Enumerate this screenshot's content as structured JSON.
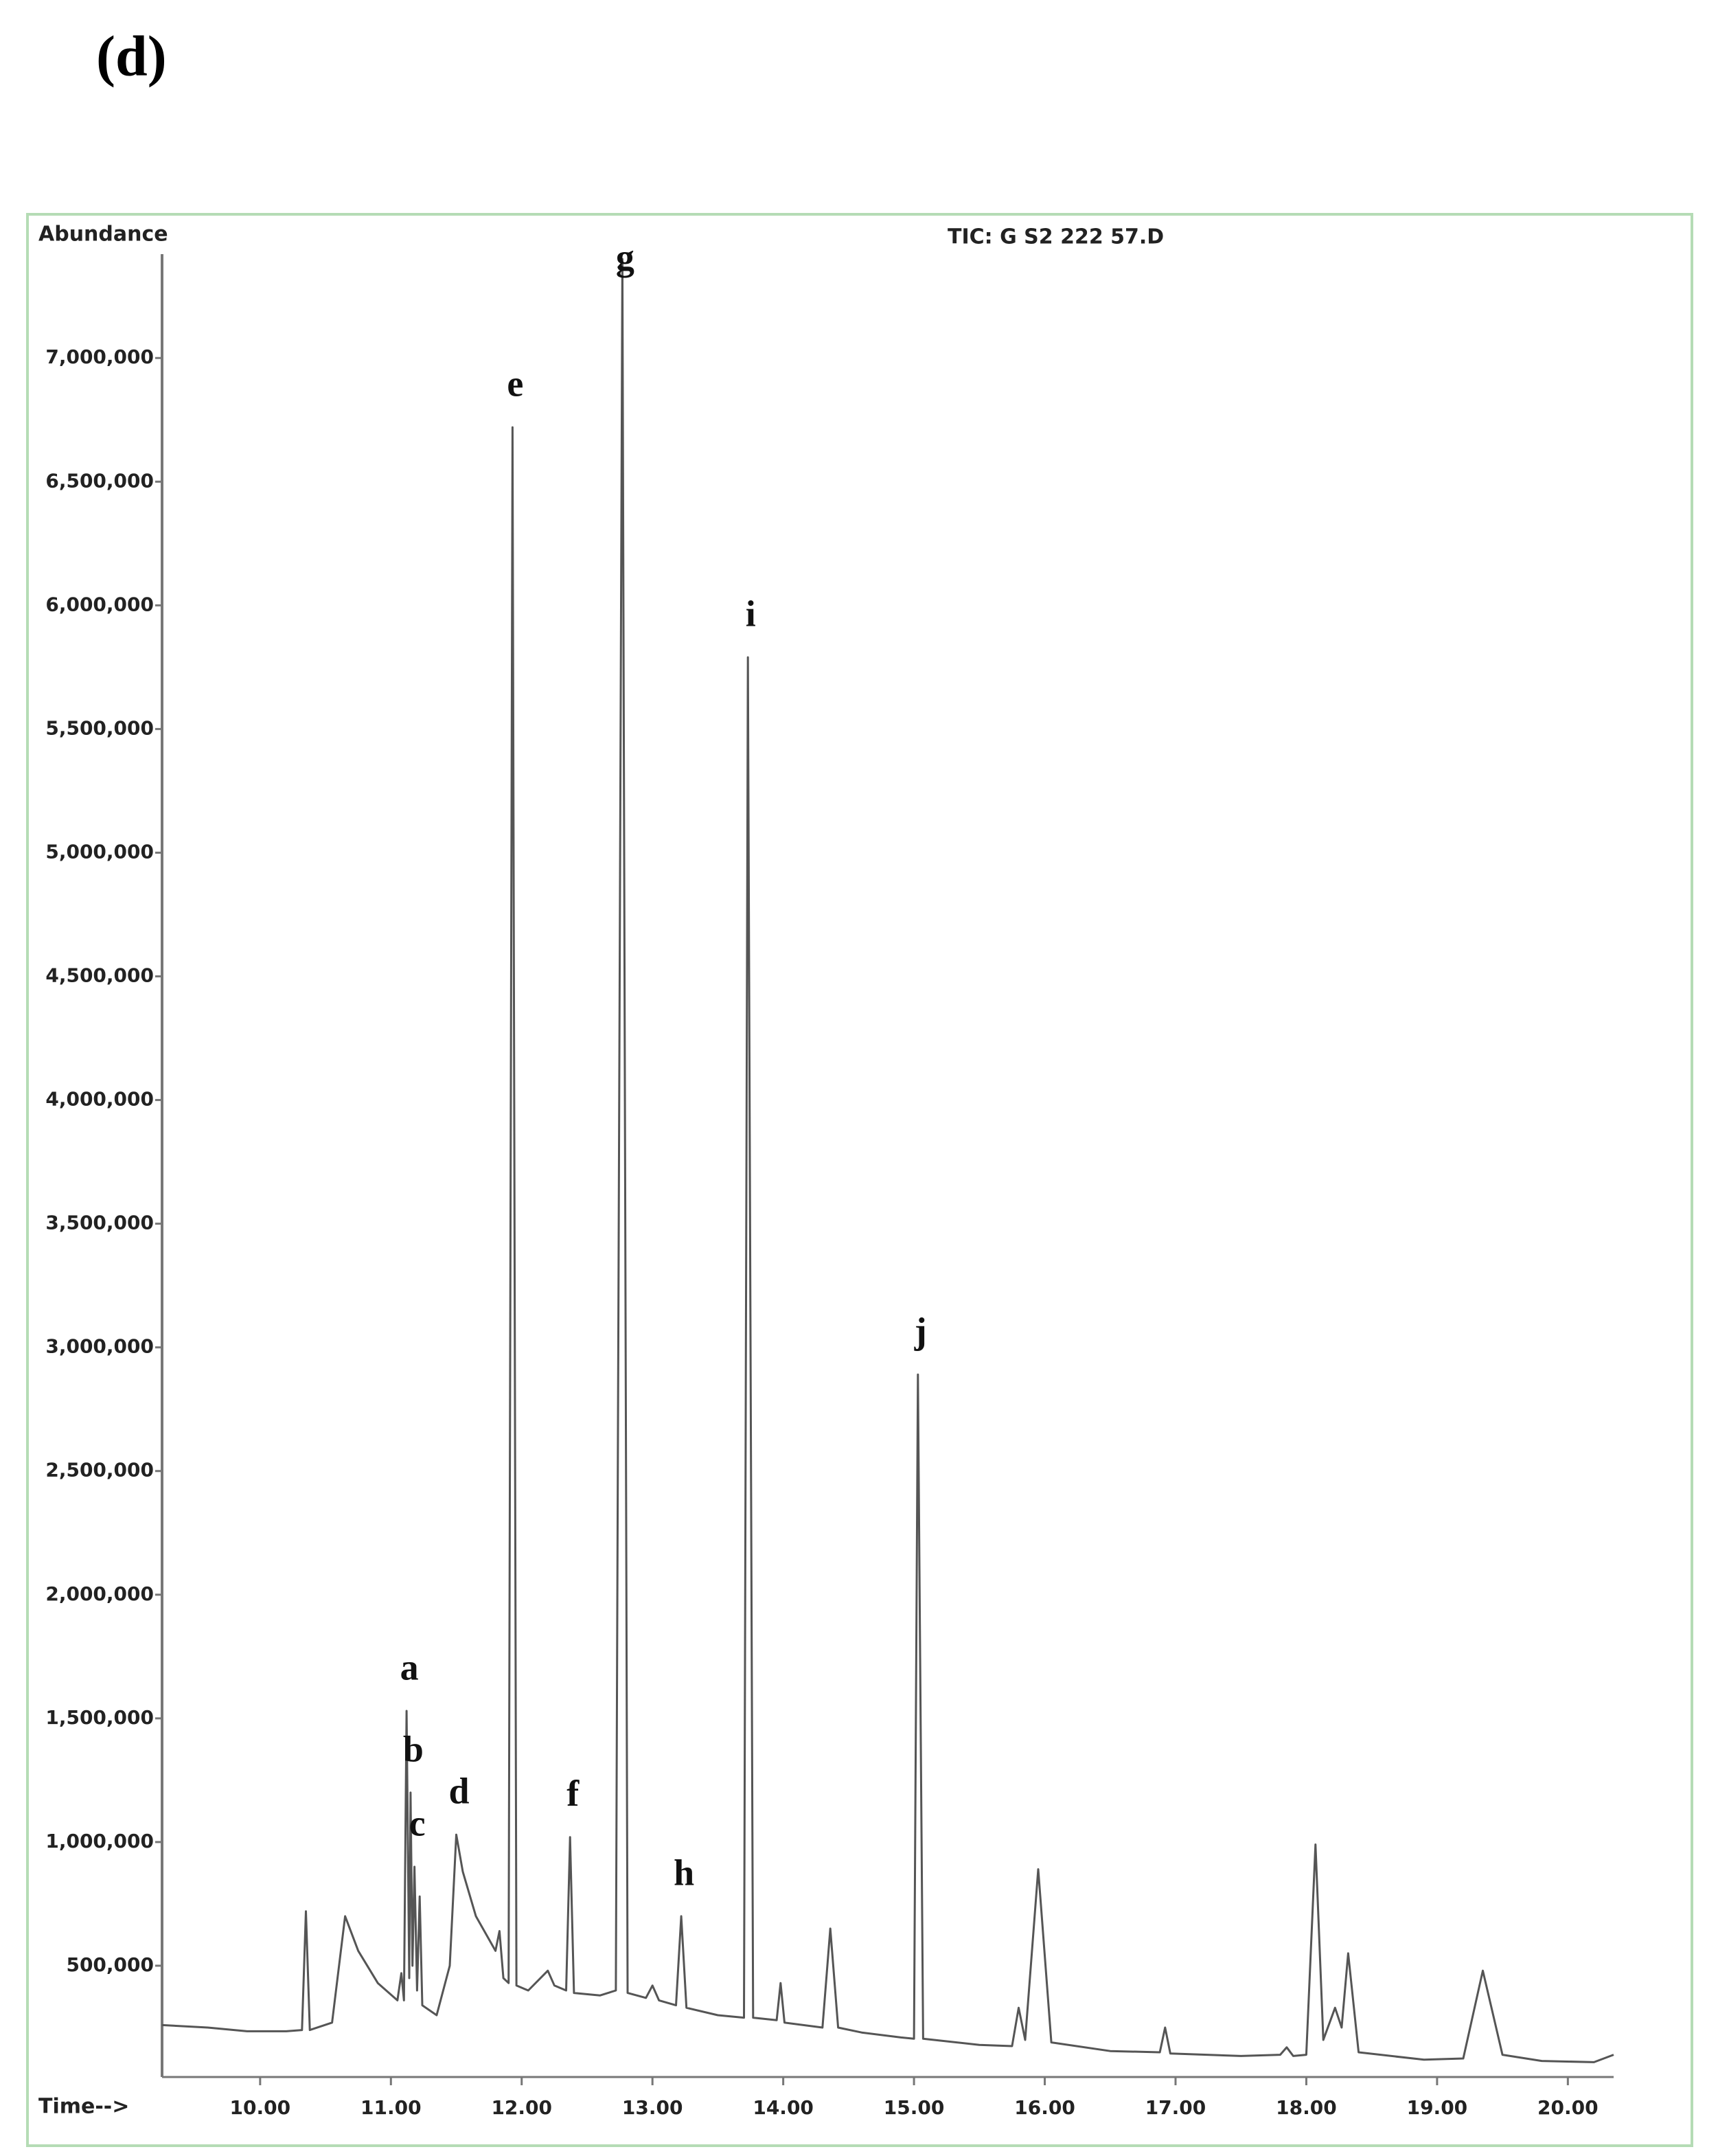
{
  "chart_data": {
    "type": "line",
    "title": "(d)",
    "y_label": "Abundance",
    "x_label": "Time-->",
    "subtitle": "TIC: G S2 222 57.D",
    "color": "#555555",
    "xlim": [
      9.25,
      20.35
    ],
    "ylim": [
      50000,
      7420000
    ],
    "xticks": [
      {
        "value": 10,
        "label": "10.00"
      },
      {
        "value": 11,
        "label": "11.00"
      },
      {
        "value": 12,
        "label": "12.00"
      },
      {
        "value": 13,
        "label": "13.00"
      },
      {
        "value": 14,
        "label": "14.00"
      },
      {
        "value": 15,
        "label": "15.00"
      },
      {
        "value": 16,
        "label": "16.00"
      },
      {
        "value": 17,
        "label": "17.00"
      },
      {
        "value": 18,
        "label": "18.00"
      },
      {
        "value": 19,
        "label": "19.00"
      },
      {
        "value": 20,
        "label": "20.00"
      }
    ],
    "yticks": [
      {
        "value": 500000,
        "label": "500,000"
      },
      {
        "value": 1000000,
        "label": "1,000,000"
      },
      {
        "value": 1500000,
        "label": "1,500,000"
      },
      {
        "value": 2000000,
        "label": "2,000,000"
      },
      {
        "value": 2500000,
        "label": "2,500,000"
      },
      {
        "value": 3000000,
        "label": "3,000,000"
      },
      {
        "value": 3500000,
        "label": "3,500,000"
      },
      {
        "value": 4000000,
        "label": "4,000,000"
      },
      {
        "value": 4500000,
        "label": "4,500,000"
      },
      {
        "value": 5000000,
        "label": "5,000,000"
      },
      {
        "value": 5500000,
        "label": "5,500,000"
      },
      {
        "value": 6000000,
        "label": "6,000,000"
      },
      {
        "value": 6500000,
        "label": "6,500,000"
      },
      {
        "value": 7000000,
        "label": "7,000,000"
      }
    ],
    "x": [
      9.25,
      9.6,
      9.9,
      10.2,
      10.32,
      10.35,
      10.38,
      10.55,
      10.65,
      10.75,
      10.9,
      11.05,
      11.08,
      11.1,
      11.12,
      11.14,
      11.15,
      11.165,
      11.18,
      11.2,
      11.22,
      11.24,
      11.35,
      11.45,
      11.5,
      11.55,
      11.65,
      11.8,
      11.83,
      11.86,
      11.9,
      11.93,
      11.96,
      12.05,
      12.2,
      12.25,
      12.34,
      12.37,
      12.4,
      12.6,
      12.72,
      12.77,
      12.81,
      12.95,
      13.0,
      13.05,
      13.18,
      13.22,
      13.26,
      13.5,
      13.7,
      13.73,
      13.77,
      13.95,
      13.98,
      14.01,
      14.3,
      14.36,
      14.42,
      14.6,
      14.9,
      15.0,
      15.03,
      15.07,
      15.5,
      15.75,
      15.8,
      15.85,
      15.95,
      16.05,
      16.5,
      16.88,
      16.92,
      16.96,
      17.5,
      17.8,
      17.85,
      17.9,
      18.0,
      18.07,
      18.13,
      18.22,
      18.27,
      18.32,
      18.4,
      18.9,
      19.2,
      19.35,
      19.5,
      19.8,
      20.2,
      20.35
    ],
    "values": [
      260000,
      250000,
      235000,
      235000,
      240000,
      720000,
      240000,
      270000,
      700000,
      560000,
      430000,
      360000,
      470000,
      360000,
      1530000,
      450000,
      1200000,
      500000,
      900000,
      400000,
      780000,
      340000,
      300000,
      500000,
      1030000,
      880000,
      700000,
      560000,
      640000,
      450000,
      430000,
      6720000,
      420000,
      400000,
      480000,
      420000,
      400000,
      1020000,
      390000,
      380000,
      400000,
      7400000,
      390000,
      370000,
      420000,
      360000,
      340000,
      700000,
      330000,
      300000,
      290000,
      5790000,
      290000,
      280000,
      430000,
      270000,
      250000,
      650000,
      250000,
      230000,
      210000,
      205000,
      2890000,
      205000,
      180000,
      175000,
      330000,
      200000,
      890000,
      190000,
      155000,
      150000,
      250000,
      145000,
      135000,
      140000,
      170000,
      135000,
      140000,
      990000,
      200000,
      330000,
      250000,
      550000,
      150000,
      120000,
      125000,
      480000,
      140000,
      115000,
      110000,
      140000
    ],
    "annotations": [
      {
        "text": "a",
        "x": 11.12
      },
      {
        "text": "b",
        "x": 11.15
      },
      {
        "text": "c",
        "x": 11.18
      },
      {
        "text": "d",
        "x": 11.5
      },
      {
        "text": "e",
        "x": 11.93
      },
      {
        "text": "f",
        "x": 12.37
      },
      {
        "text": "g",
        "x": 12.77
      },
      {
        "text": "h",
        "x": 13.22
      },
      {
        "text": "i",
        "x": 13.73
      },
      {
        "text": "j",
        "x": 15.03
      }
    ]
  }
}
